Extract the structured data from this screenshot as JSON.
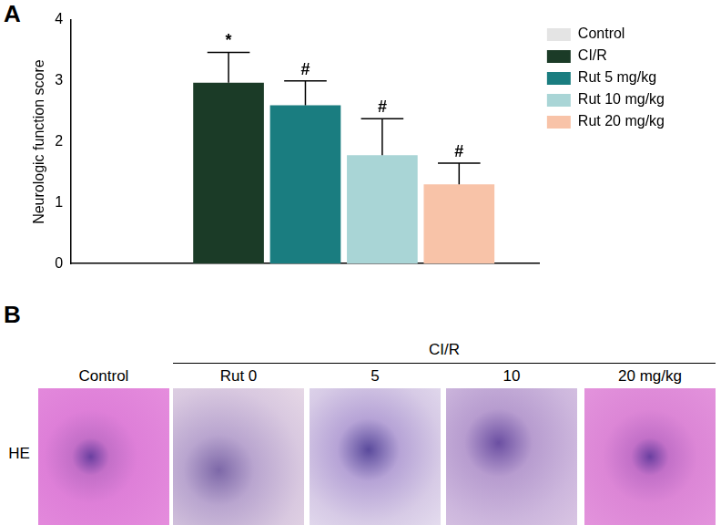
{
  "chart_data": {
    "type": "bar",
    "panel_label": "A",
    "y_label": "Neurologic function score",
    "categories": [
      null
    ],
    "series": [
      {
        "name": "Control",
        "color": "#e4e4e4",
        "values": [
          0
        ],
        "errors": [
          0
        ]
      },
      {
        "name": "CI/R",
        "color": "#1b3b27",
        "values": [
          2.97
        ],
        "errors": [
          0.5
        ],
        "annotation": "*"
      },
      {
        "name": "Rut 5 mg/kg",
        "color": "#1a7d80",
        "values": [
          2.6
        ],
        "errors": [
          0.4
        ],
        "annotation": "#"
      },
      {
        "name": "Rut 10 mg/kg",
        "color": "#a9d5d6",
        "values": [
          1.78
        ],
        "errors": [
          0.6
        ],
        "annotation": "#"
      },
      {
        "name": "Rut 20 mg/kg",
        "color": "#f8c3a8",
        "values": [
          1.3
        ],
        "errors": [
          0.35
        ],
        "annotation": "#"
      }
    ],
    "ylim": [
      0,
      4
    ],
    "yticks": [
      0,
      1,
      2,
      3,
      4
    ],
    "grid": false,
    "legend": "right"
  },
  "histology": {
    "panel_label": "B",
    "group_label": "CI/R",
    "row_label": "HE",
    "columns": [
      "Control",
      "Rut 0",
      "5",
      "10",
      "20 mg/kg"
    ]
  }
}
